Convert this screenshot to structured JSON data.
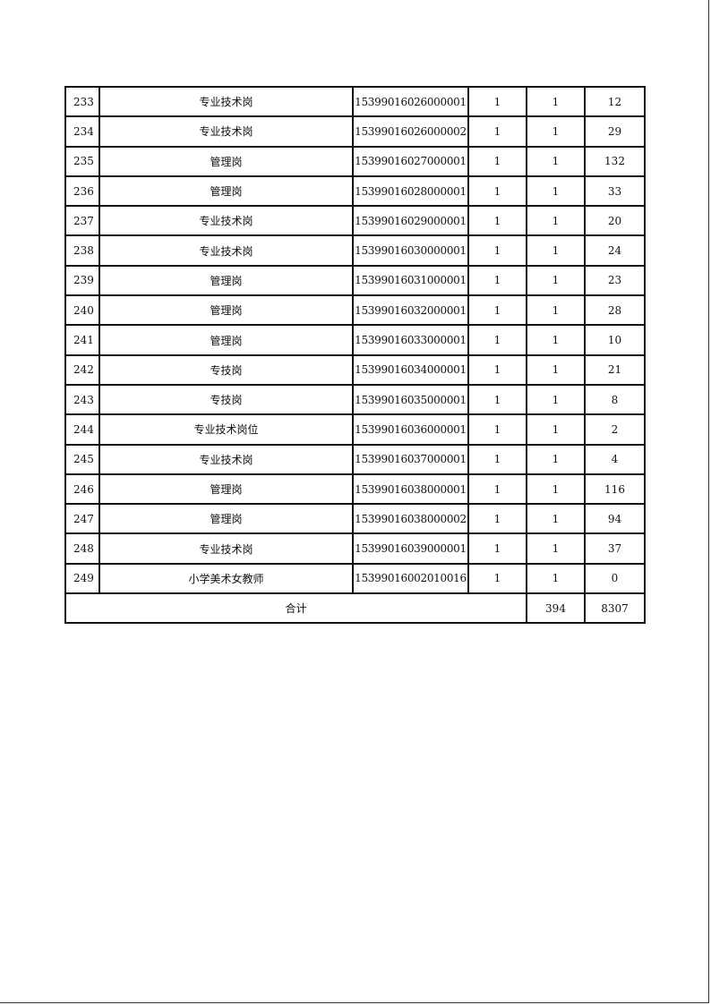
{
  "table": {
    "rows": [
      [
        "233",
        "专业技术岗",
        "15399016026000001",
        "1",
        "1",
        "12"
      ],
      [
        "234",
        "专业技术岗",
        "15399016026000002",
        "1",
        "1",
        "29"
      ],
      [
        "235",
        "管理岗",
        "15399016027000001",
        "1",
        "1",
        "132"
      ],
      [
        "236",
        "管理岗",
        "15399016028000001",
        "1",
        "1",
        "33"
      ],
      [
        "237",
        "专业技术岗",
        "15399016029000001",
        "1",
        "1",
        "20"
      ],
      [
        "238",
        "专业技术岗",
        "15399016030000001",
        "1",
        "1",
        "24"
      ],
      [
        "239",
        "管理岗",
        "15399016031000001",
        "1",
        "1",
        "23"
      ],
      [
        "240",
        "管理岗",
        "15399016032000001",
        "1",
        "1",
        "28"
      ],
      [
        "241",
        "管理岗",
        "15399016033000001",
        "1",
        "1",
        "10"
      ],
      [
        "242",
        "专技岗",
        "15399016034000001",
        "1",
        "1",
        "21"
      ],
      [
        "243",
        "专技岗",
        "15399016035000001",
        "1",
        "1",
        "8"
      ],
      [
        "244",
        "专业技术岗位",
        "15399016036000001",
        "1",
        "1",
        "2"
      ],
      [
        "245",
        "专业技术岗",
        "15399016037000001",
        "1",
        "1",
        "4"
      ],
      [
        "246",
        "管理岗",
        "15399016038000001",
        "1",
        "1",
        "116"
      ],
      [
        "247",
        "管理岗",
        "15399016038000002",
        "1",
        "1",
        "94"
      ],
      [
        "248",
        "专业技术岗",
        "15399016039000001",
        "1",
        "1",
        "37"
      ],
      [
        "249",
        "小学美术女教师",
        "15399016002010016",
        "1",
        "1",
        "0"
      ]
    ],
    "total": {
      "label": "合计",
      "count": "394",
      "applicants": "8307"
    }
  }
}
